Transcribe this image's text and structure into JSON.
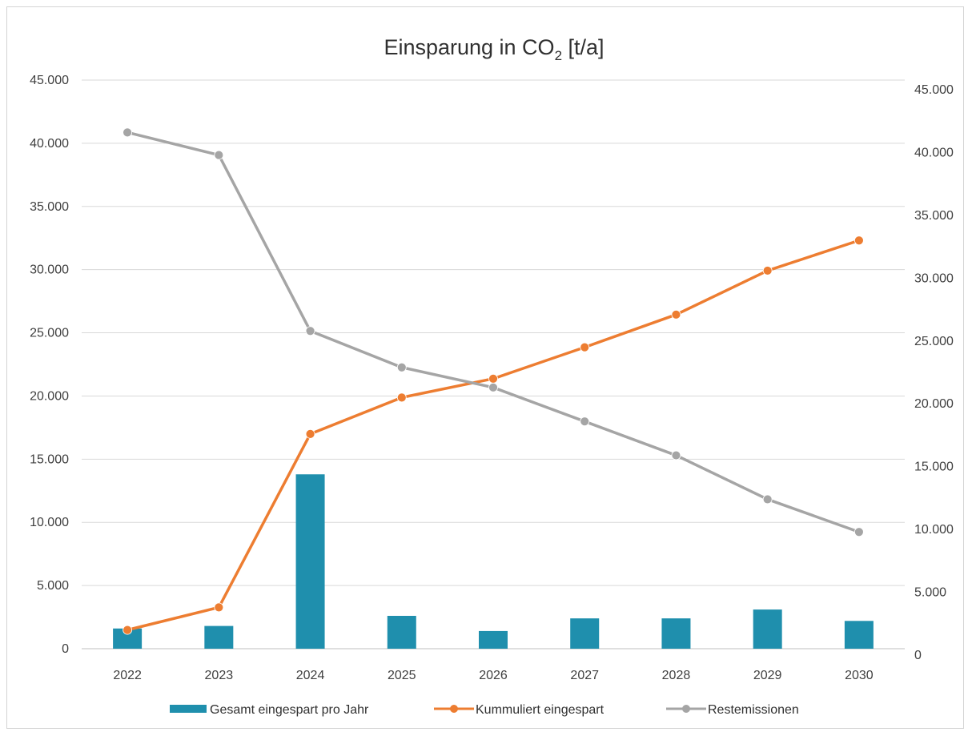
{
  "chart_data": {
    "type": "bar",
    "title_main": "Einsparung in CO",
    "title_sub": "2",
    "title_tail": " [t/a]",
    "categories": [
      "2022",
      "2023",
      "2024",
      "2025",
      "2026",
      "2027",
      "2028",
      "2029",
      "2030"
    ],
    "y_left": {
      "min": 0,
      "max": 45000,
      "ticks": [
        "0",
        "5.000",
        "10.000",
        "15.000",
        "20.000",
        "25.000",
        "30.000",
        "35.000",
        "40.000",
        "45.000"
      ]
    },
    "y_right": {
      "min": 0,
      "max": 45000,
      "ticks": [
        "0",
        "5.000",
        "10.000",
        "15.000",
        "20.000",
        "25.000",
        "30.000",
        "35.000",
        "40.000",
        "45.000"
      ]
    },
    "series": [
      {
        "name": "Gesamt eingespart pro Jahr",
        "kind": "bar",
        "axis": "left",
        "color": "#1f8fad",
        "values": [
          1600,
          1800,
          13800,
          2600,
          1400,
          2400,
          2400,
          3100,
          2200
        ]
      },
      {
        "name": "Kummuliert eingespart",
        "kind": "line",
        "axis": "right",
        "color": "#ed7d31",
        "values": [
          2000,
          3800,
          17600,
          20500,
          22000,
          24500,
          27100,
          30600,
          33000
        ]
      },
      {
        "name": "Restemissionen",
        "kind": "line",
        "axis": "right",
        "color": "#a5a5a5",
        "values": [
          41600,
          39800,
          25800,
          22900,
          21300,
          18600,
          15900,
          12400,
          9800
        ]
      }
    ],
    "grid": true,
    "legend_position": "bottom"
  }
}
